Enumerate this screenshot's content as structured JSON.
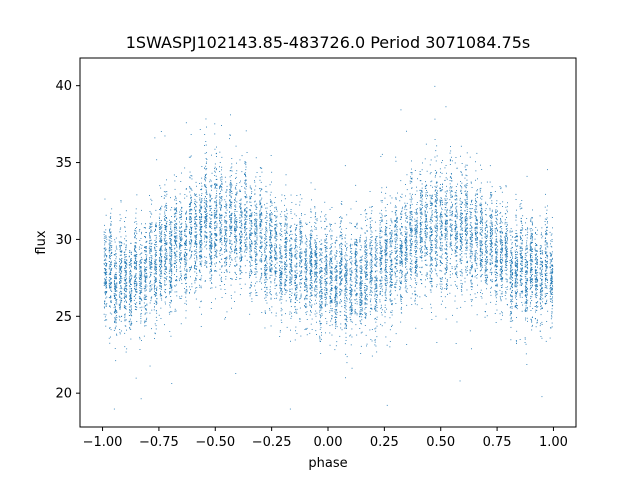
{
  "chart_data": {
    "type": "scatter",
    "title": "1SWASPJ102143.85-483726.0 Period 3071084.75s",
    "xlabel": "phase",
    "ylabel": "flux",
    "xlim": [
      -1.1,
      1.1
    ],
    "ylim": [
      17.8,
      41.8
    ],
    "xticks": [
      -1.0,
      -0.75,
      -0.5,
      -0.25,
      0.0,
      0.25,
      0.5,
      0.75,
      1.0
    ],
    "xtick_labels": [
      "−1.00",
      "−0.75",
      "−0.50",
      "−0.25",
      "0.00",
      "0.25",
      "0.50",
      "0.75",
      "1.00"
    ],
    "yticks": [
      20,
      25,
      30,
      35,
      40
    ],
    "ytick_labels": [
      "20",
      "25",
      "30",
      "35",
      "40"
    ],
    "grid": false,
    "legend": "none",
    "point_color": "#1f77b4",
    "series": [
      {
        "phase_range": [
          -1.0,
          1.0
        ],
        "points_approx": 12000,
        "profile": {
          "phase": [
            -1.0,
            -0.9,
            -0.8,
            -0.7,
            -0.6,
            -0.5,
            -0.4,
            -0.3,
            -0.2,
            -0.1,
            0.0,
            0.1,
            0.2,
            0.3,
            0.4,
            0.5,
            0.6,
            0.7,
            0.8,
            0.9,
            1.0
          ],
          "median_flux": [
            27.8,
            27.3,
            28.3,
            29.3,
            30.5,
            31.0,
            30.8,
            30.0,
            28.8,
            28.2,
            27.5,
            27.2,
            28.0,
            29.0,
            30.3,
            30.8,
            30.6,
            29.8,
            28.6,
            28.0,
            27.8
          ],
          "scatter": [
            1.6,
            1.7,
            1.7,
            1.8,
            1.9,
            2.0,
            1.9,
            1.8,
            1.7,
            1.7,
            1.6,
            1.7,
            1.7,
            1.8,
            1.9,
            2.0,
            1.9,
            1.8,
            1.7,
            1.7,
            1.6
          ]
        },
        "flux_extremes": [
          19.0,
          40.6
        ]
      }
    ]
  }
}
